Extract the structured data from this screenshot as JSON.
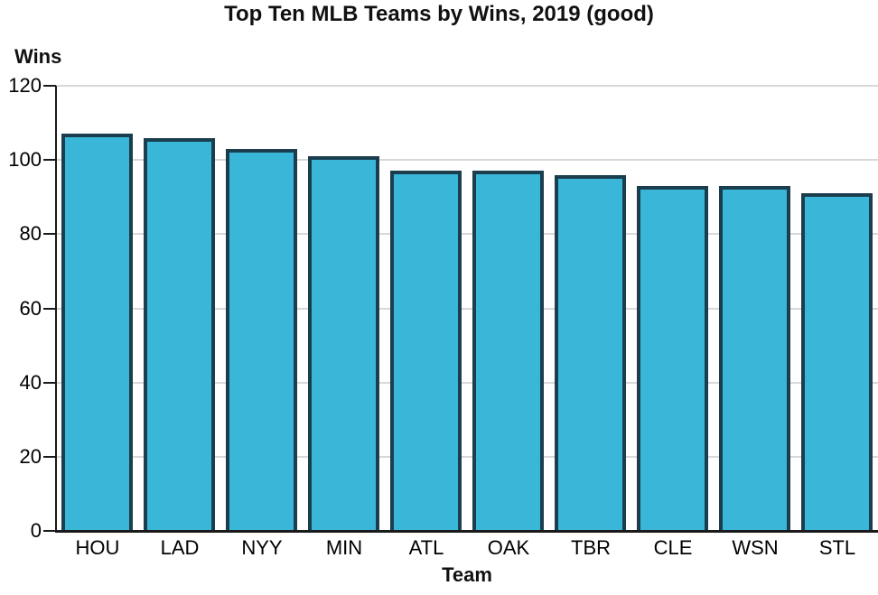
{
  "title": "Top Ten MLB Teams by Wins, 2019 (good)",
  "chart_data": {
    "type": "bar",
    "title": "Top Ten MLB Teams by Wins, 2019 (good)",
    "xlabel": "Team",
    "ylabel": "Wins",
    "categories": [
      "HOU",
      "LAD",
      "NYY",
      "MIN",
      "ATL",
      "OAK",
      "TBR",
      "CLE",
      "WSN",
      "STL"
    ],
    "values": [
      107,
      106,
      103,
      101,
      97,
      97,
      96,
      93,
      93,
      91
    ],
    "ylim": [
      0,
      120
    ],
    "yticks": [
      0,
      20,
      40,
      60,
      80,
      100,
      120
    ],
    "grid": true,
    "legend": "none",
    "colors": {
      "bar_fill": "#3ab7d8",
      "bar_border": "#1b3e4e",
      "gridline": "#d8d8d8",
      "axis": "#1a1a1a",
      "text": "#000000",
      "background": "#ffffff"
    }
  }
}
